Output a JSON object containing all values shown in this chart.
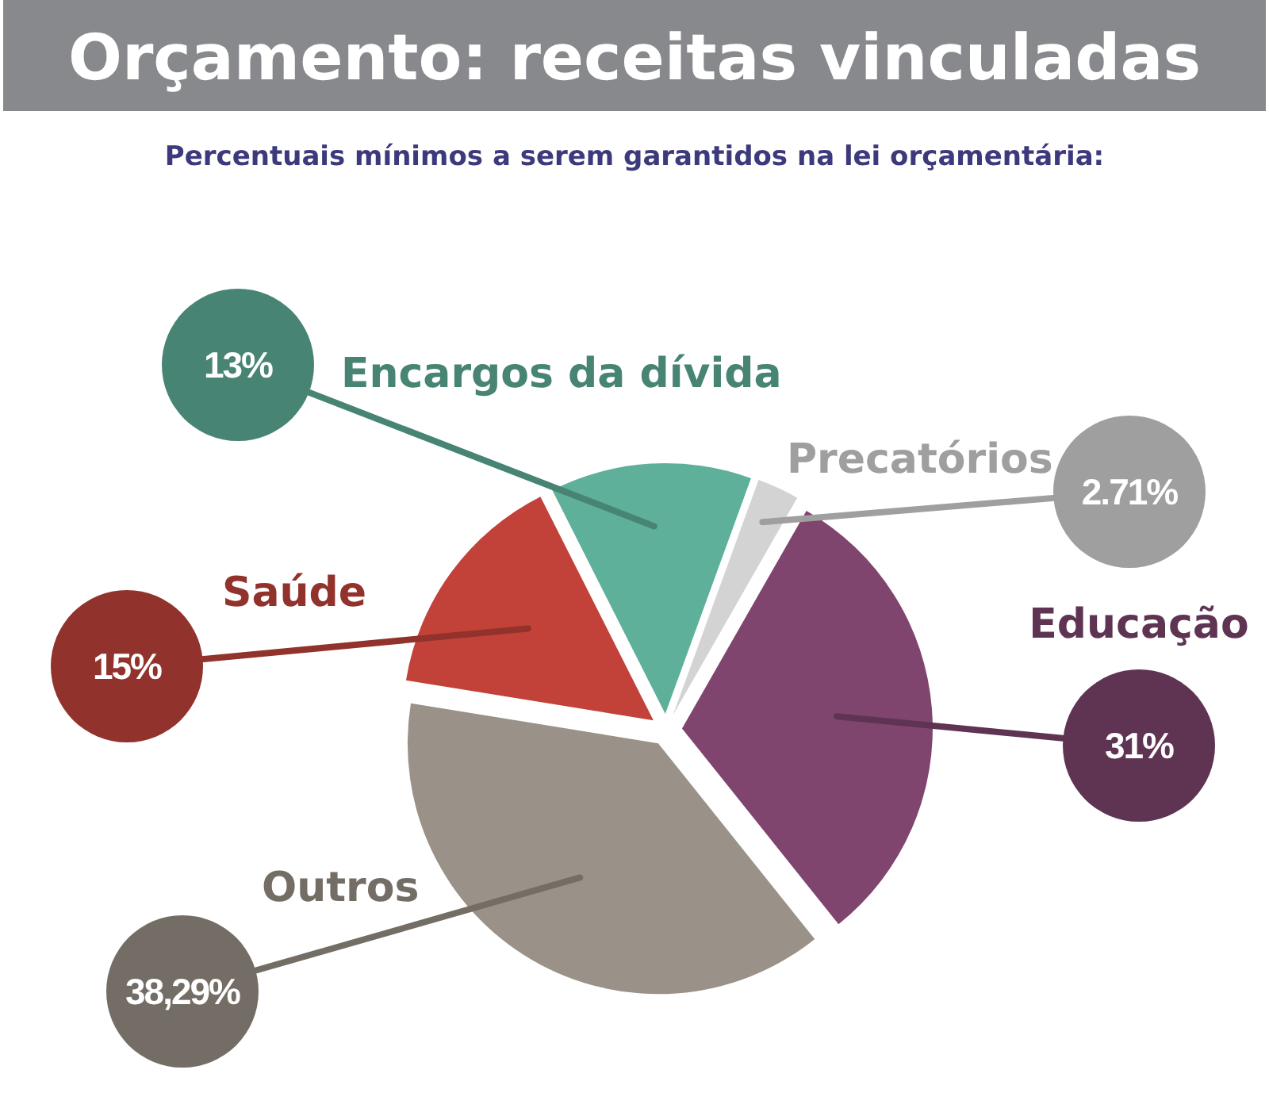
{
  "chart_data": {
    "type": "pie",
    "title": "Orçamento: receitas vinculadas",
    "subtitle": "Percentuais mínimos a serem garantidos na lei orçamentária:",
    "categories": [
      "Precatórios",
      "Educação",
      "Outros",
      "Saúde",
      "Encargos da dívida"
    ],
    "values": [
      2.71,
      31,
      38.29,
      15,
      13
    ],
    "colors": [
      "#d3d3d3",
      "#7f456e",
      "#9a9188",
      "#c2423a",
      "#5eb09a"
    ],
    "value_labels": [
      "2.71%",
      "31%",
      "38,29%",
      "15%",
      "13%"
    ]
  }
}
